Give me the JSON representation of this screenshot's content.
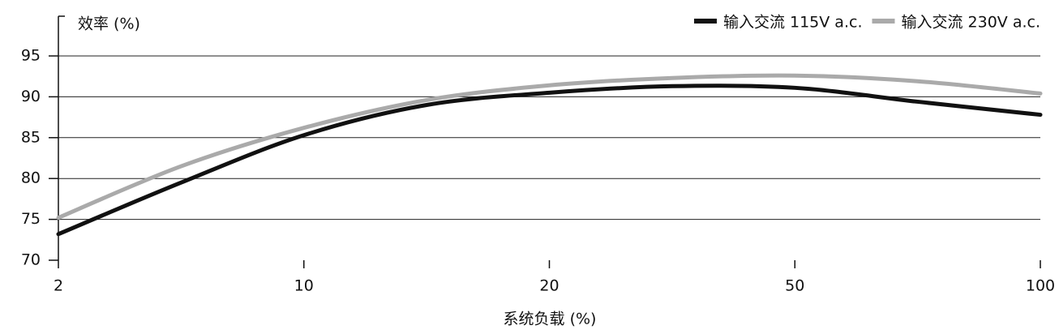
{
  "chart_data": {
    "type": "line",
    "y_label": "效率 (%)",
    "x_label": "系统负载 (%)",
    "categories": [
      "2",
      null,
      "10",
      null,
      "20",
      null,
      "50",
      null,
      "100"
    ],
    "series": [
      {
        "name": "输入交流 115V a.c.",
        "color": "#111111",
        "values": [
          73.2,
          79.5,
          85.3,
          89.0,
          90.5,
          91.3,
          91.1,
          89.4,
          87.8
        ]
      },
      {
        "name": "输入交流 230V a.c.",
        "color": "#aaaaaa",
        "values": [
          75.2,
          81.5,
          86.2,
          89.6,
          91.4,
          92.3,
          92.6,
          91.9,
          90.4
        ]
      }
    ],
    "ylim": [
      70,
      100
    ],
    "yticks": [
      70,
      75,
      80,
      85,
      90,
      95
    ],
    "grid": true,
    "legend": "top-right"
  }
}
